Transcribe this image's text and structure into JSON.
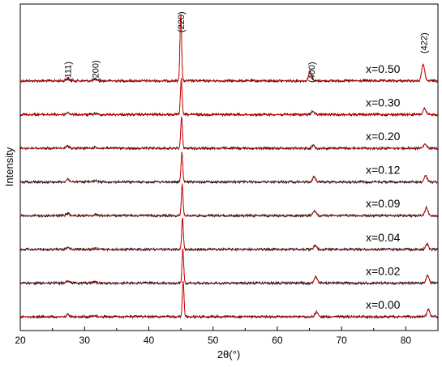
{
  "chart_data": {
    "type": "line",
    "title": "",
    "xlabel": "2θ(°)",
    "ylabel": "Intensity",
    "xlim": [
      20,
      85
    ],
    "xticks": [
      20,
      30,
      40,
      50,
      60,
      70,
      80
    ],
    "yticks": "none",
    "grid": false,
    "legend": "none (labels placed beside each trace)",
    "colors": {
      "observed": "#000000",
      "fit": "#e00000"
    },
    "peak_labels": [
      {
        "text": "(111)",
        "x": 27.4
      },
      {
        "text": "(200)",
        "x": 31.7
      },
      {
        "text": "(220)",
        "x": 45.0
      },
      {
        "text": "(400)",
        "x": 65.3
      },
      {
        "text": "(422)",
        "x": 82.8
      }
    ],
    "series": [
      {
        "name": "x=0.50",
        "offset": 7,
        "peaks": [
          [
            27.4,
            0.04
          ],
          [
            31.7,
            0.03
          ],
          [
            44.98,
            1.0
          ],
          [
            65.1,
            0.14
          ],
          [
            82.7,
            0.25
          ]
        ]
      },
      {
        "name": "x=0.30",
        "offset": 6,
        "peaks": [
          [
            27.4,
            0.06
          ],
          [
            31.7,
            0.03
          ],
          [
            45.05,
            1.0
          ],
          [
            65.5,
            0.09
          ],
          [
            82.9,
            0.16
          ]
        ]
      },
      {
        "name": "x=0.20",
        "offset": 5,
        "peaks": [
          [
            27.4,
            0.06
          ],
          [
            31.7,
            0.03
          ],
          [
            45.1,
            0.9
          ],
          [
            65.6,
            0.08
          ],
          [
            83.0,
            0.12
          ]
        ]
      },
      {
        "name": "x=0.12",
        "offset": 4,
        "peaks": [
          [
            27.4,
            0.08
          ],
          [
            31.7,
            0.03
          ],
          [
            45.15,
            0.85
          ],
          [
            65.7,
            0.14
          ],
          [
            83.1,
            0.18
          ]
        ]
      },
      {
        "name": "x=0.09",
        "offset": 3,
        "peaks": [
          [
            27.4,
            0.07
          ],
          [
            31.7,
            0.03
          ],
          [
            45.2,
            0.9
          ],
          [
            65.8,
            0.14
          ],
          [
            83.2,
            0.22
          ]
        ]
      },
      {
        "name": "x=0.04",
        "offset": 2,
        "peaks": [
          [
            27.4,
            0.06
          ],
          [
            31.7,
            0.03
          ],
          [
            45.25,
            0.9
          ],
          [
            65.9,
            0.11
          ],
          [
            83.3,
            0.15
          ]
        ]
      },
      {
        "name": "x=0.02",
        "offset": 1,
        "peaks": [
          [
            27.4,
            0.06
          ],
          [
            31.7,
            0.03
          ],
          [
            45.3,
            0.95
          ],
          [
            66.0,
            0.18
          ],
          [
            83.4,
            0.2
          ]
        ]
      },
      {
        "name": "x=0.00",
        "offset": 0,
        "peaks": [
          [
            27.4,
            0.06
          ],
          [
            31.7,
            0.03
          ],
          [
            45.35,
            1.0
          ],
          [
            66.1,
            0.14
          ],
          [
            83.5,
            0.2
          ]
        ]
      }
    ]
  }
}
